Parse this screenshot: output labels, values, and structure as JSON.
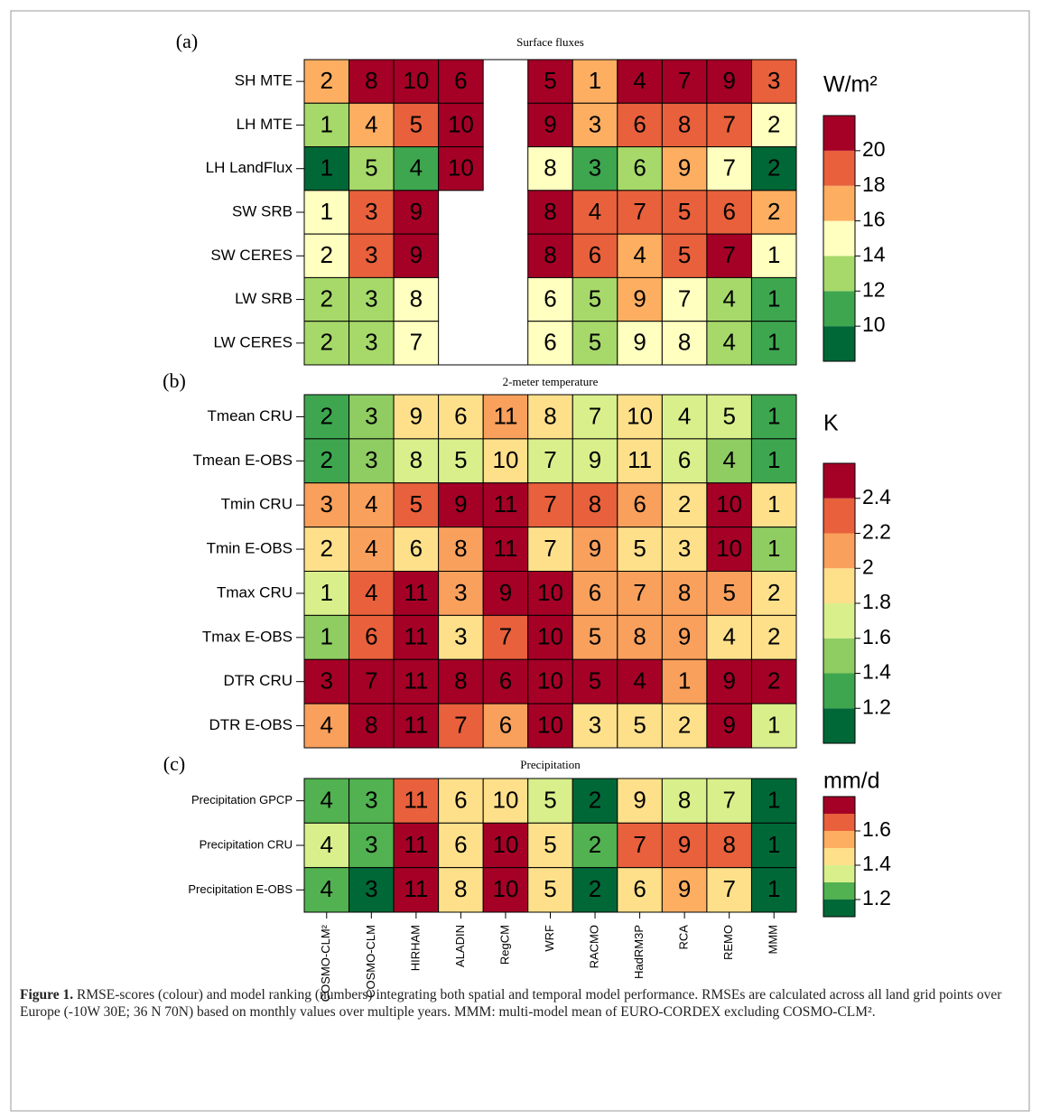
{
  "chart_data": [
    {
      "type": "heatmap",
      "panel_label": "(a)",
      "title": "Surface fluxes",
      "rows": [
        "SH MTE",
        "LH MTE",
        "LH LandFlux",
        "SW SRB",
        "SW CERES",
        "LW SRB",
        "LW CERES"
      ],
      "values": [
        [
          17,
          21,
          21,
          21,
          null,
          21,
          17,
          21,
          21,
          21,
          19
        ],
        [
          13,
          17,
          19,
          21,
          null,
          21,
          17,
          19,
          19,
          19,
          15
        ],
        [
          9,
          13,
          11,
          21,
          null,
          15,
          11,
          13,
          17,
          15,
          9
        ],
        [
          15,
          19,
          21,
          null,
          null,
          21,
          19,
          19,
          19,
          19,
          17
        ],
        [
          15,
          19,
          21,
          null,
          null,
          21,
          19,
          17,
          19,
          21,
          15
        ],
        [
          13,
          13,
          15,
          null,
          null,
          15,
          13,
          17,
          15,
          13,
          11
        ],
        [
          13,
          13,
          15,
          null,
          null,
          15,
          13,
          15,
          15,
          13,
          11
        ]
      ],
      "ranks": [
        [
          2,
          8,
          10,
          6,
          null,
          5,
          1,
          4,
          7,
          9,
          3
        ],
        [
          1,
          4,
          5,
          10,
          null,
          9,
          3,
          6,
          8,
          7,
          2
        ],
        [
          1,
          5,
          4,
          10,
          null,
          8,
          3,
          6,
          9,
          7,
          2
        ],
        [
          1,
          3,
          9,
          null,
          null,
          8,
          4,
          7,
          5,
          6,
          2
        ],
        [
          2,
          3,
          9,
          null,
          null,
          8,
          6,
          4,
          5,
          7,
          1
        ],
        [
          2,
          3,
          8,
          null,
          null,
          6,
          5,
          9,
          7,
          4,
          1
        ],
        [
          2,
          3,
          7,
          null,
          null,
          6,
          5,
          9,
          8,
          4,
          1
        ]
      ],
      "colorbar_unit": "W/m²",
      "clim": [
        8,
        22
      ],
      "cticks": [
        10,
        12,
        14,
        16,
        18,
        20
      ],
      "colors": [
        "#006837",
        "#3ea64f",
        "#a6d96a",
        "#ffffbf",
        "#fdae61",
        "#e8603c",
        "#a50026"
      ]
    },
    {
      "type": "heatmap",
      "panel_label": "(b)",
      "title": "2-meter temperature",
      "rows": [
        "Tmean CRU",
        "Tmean E-OBS",
        "Tmin CRU",
        "Tmin E-OBS",
        "Tmax CRU",
        "Tmax E-OBS",
        "DTR CRU",
        "DTR E-OBS"
      ],
      "values": [
        [
          1.3,
          1.5,
          1.9,
          1.9,
          2.1,
          1.9,
          1.7,
          1.9,
          1.7,
          1.7,
          1.3
        ],
        [
          1.3,
          1.5,
          1.7,
          1.7,
          1.9,
          1.7,
          1.7,
          1.9,
          1.7,
          1.5,
          1.3
        ],
        [
          2.1,
          2.1,
          2.3,
          2.5,
          2.5,
          2.3,
          2.3,
          2.1,
          1.9,
          2.5,
          1.9
        ],
        [
          1.9,
          2.1,
          1.9,
          2.1,
          2.5,
          1.9,
          2.1,
          1.9,
          1.9,
          2.5,
          1.5
        ],
        [
          1.7,
          2.3,
          2.5,
          2.1,
          2.5,
          2.5,
          2.1,
          2.1,
          2.1,
          2.1,
          1.9
        ],
        [
          1.5,
          2.3,
          2.5,
          1.9,
          2.3,
          2.5,
          2.1,
          2.1,
          2.1,
          1.9,
          1.9
        ],
        [
          2.5,
          2.5,
          2.5,
          2.5,
          2.5,
          2.5,
          2.5,
          2.5,
          2.1,
          2.5,
          2.5
        ],
        [
          2.1,
          2.5,
          2.5,
          2.3,
          2.1,
          2.5,
          1.9,
          1.9,
          1.9,
          2.5,
          1.7
        ]
      ],
      "ranks": [
        [
          2,
          3,
          9,
          6,
          11,
          8,
          7,
          10,
          4,
          5,
          1
        ],
        [
          2,
          3,
          8,
          5,
          10,
          7,
          9,
          11,
          6,
          4,
          1
        ],
        [
          3,
          4,
          5,
          9,
          11,
          7,
          8,
          6,
          2,
          10,
          1
        ],
        [
          2,
          4,
          6,
          8,
          11,
          7,
          9,
          5,
          3,
          10,
          1
        ],
        [
          1,
          4,
          11,
          3,
          9,
          10,
          6,
          7,
          8,
          5,
          2
        ],
        [
          1,
          6,
          11,
          3,
          7,
          10,
          5,
          8,
          9,
          4,
          2
        ],
        [
          3,
          7,
          11,
          8,
          6,
          10,
          5,
          4,
          1,
          9,
          2
        ],
        [
          4,
          8,
          11,
          7,
          6,
          10,
          3,
          5,
          2,
          9,
          1
        ]
      ],
      "colorbar_unit": "K",
      "clim": [
        1.0,
        2.6
      ],
      "cticks": [
        1.2,
        1.4,
        1.6,
        1.8,
        2,
        2.2,
        2.4
      ],
      "colors": [
        "#006837",
        "#3ea64f",
        "#8fcc62",
        "#d9ef8b",
        "#fee08b",
        "#f9a05c",
        "#e8603c",
        "#a50026"
      ]
    },
    {
      "type": "heatmap",
      "panel_label": "(c)",
      "title": "Precipitation",
      "rows": [
        "Precipitation GPCP",
        "Precipitation CRU",
        "Precipitation E-OBS"
      ],
      "columns": [
        "COSMO-CLM²",
        "COSMO-CLM",
        "HIRHAM",
        "ALADIN",
        "RegCM",
        "WRF",
        "RACMO",
        "HadRM3P",
        "RCA",
        "REMO",
        "MMM"
      ],
      "values": [
        [
          1.25,
          1.25,
          1.65,
          1.45,
          1.45,
          1.35,
          1.15,
          1.45,
          1.35,
          1.35,
          1.15
        ],
        [
          1.35,
          1.25,
          1.75,
          1.45,
          1.75,
          1.45,
          1.25,
          1.65,
          1.65,
          1.65,
          1.15
        ],
        [
          1.25,
          1.15,
          1.75,
          1.45,
          1.75,
          1.45,
          1.15,
          1.45,
          1.55,
          1.45,
          1.15
        ]
      ],
      "ranks": [
        [
          4,
          3,
          11,
          6,
          10,
          5,
          2,
          9,
          8,
          7,
          1
        ],
        [
          4,
          3,
          11,
          6,
          10,
          5,
          2,
          7,
          9,
          8,
          1
        ],
        [
          4,
          3,
          11,
          8,
          10,
          5,
          2,
          6,
          9,
          7,
          1
        ]
      ],
      "colorbar_unit": "mm/d",
      "clim": [
        1.1,
        1.8
      ],
      "cticks": [
        1.2,
        1.4,
        1.6
      ],
      "colors": [
        "#006837",
        "#52b150",
        "#d9ef8b",
        "#fee08b",
        "#fdae61",
        "#e8603c",
        "#a50026"
      ]
    }
  ],
  "caption": {
    "label": "Figure 1.",
    "text": "RMSE-scores (colour) and model ranking (numbers) integrating both spatial and temporal model performance. RMSEs are calculated across all land grid points over Europe (-10W 30E; 36 N 70N) based on monthly values over multiple years. MMM: multi-model mean of EURO-CORDEX excluding COSMO-CLM²."
  }
}
